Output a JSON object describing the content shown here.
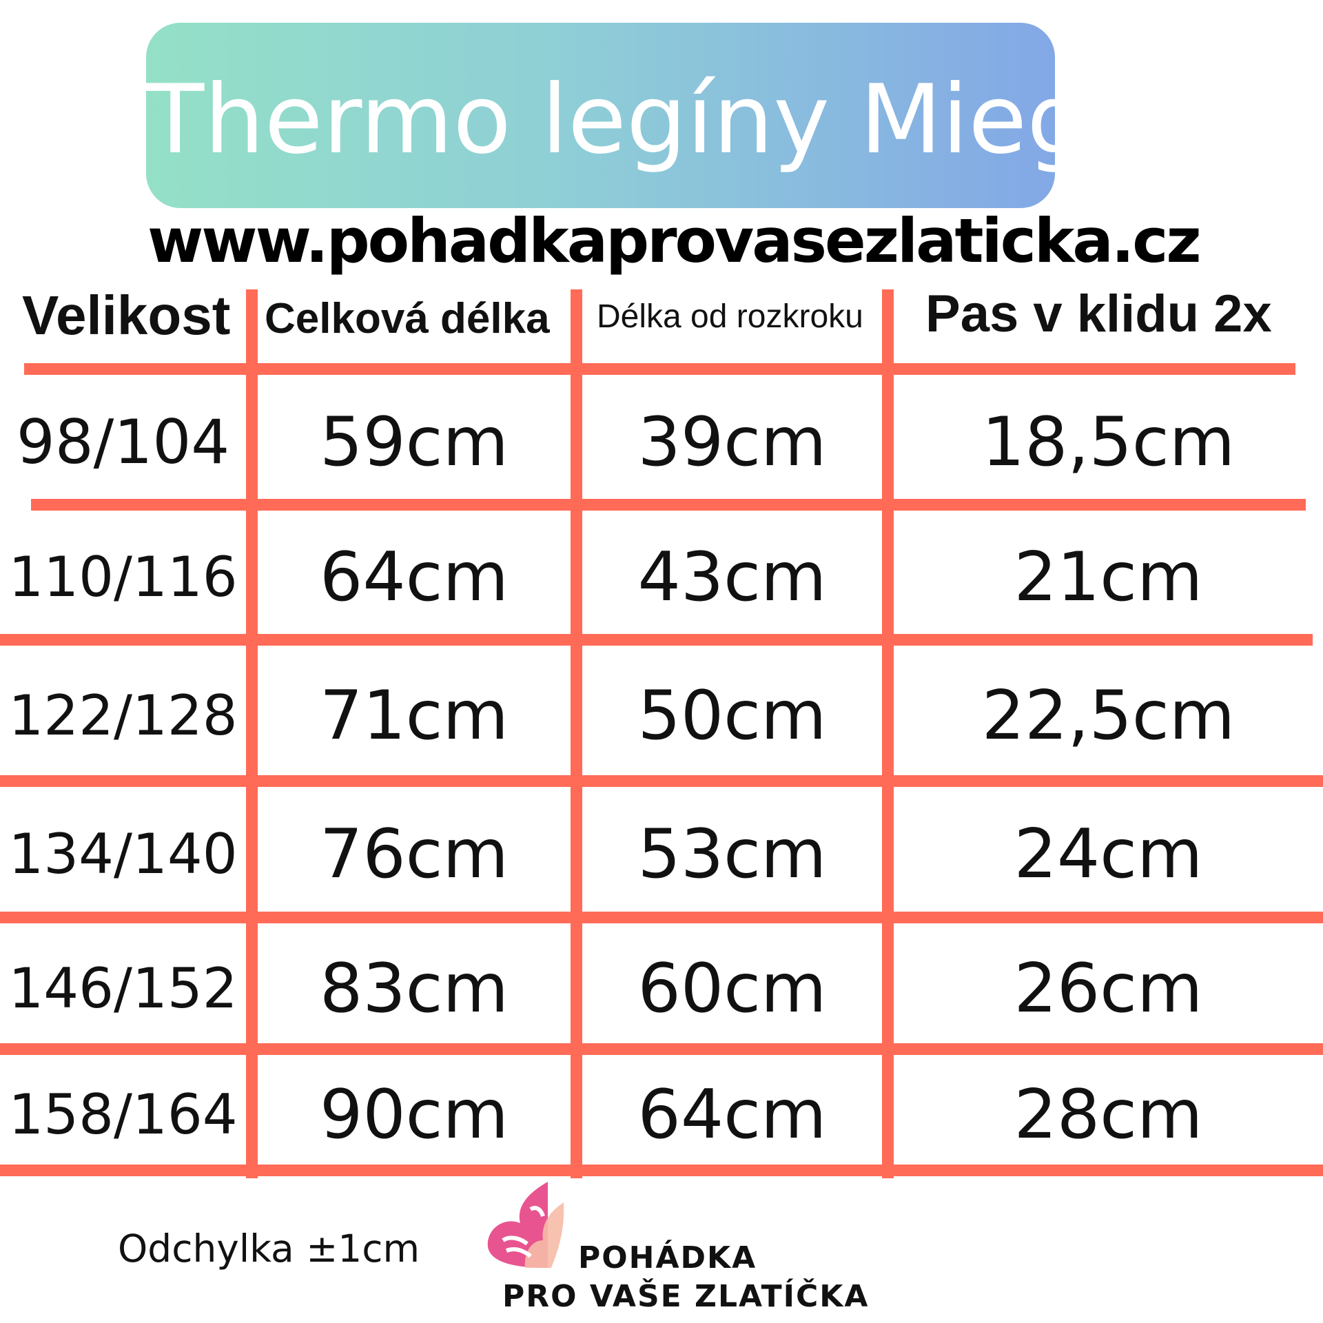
{
  "title": "Thermo legíny Miego",
  "url": "www.pohadkaprovasezlaticka.cz",
  "colors": {
    "grid": "#ff6b57",
    "gradient_start": "#94e0c7",
    "gradient_end": "#83a8e6",
    "logo_pink": "#e8548f",
    "logo_peach": "#f6bba7"
  },
  "table": {
    "headers": [
      "Velikost",
      "Celková délka",
      "Délka od rozkroku",
      "Pas v klidu 2x"
    ],
    "rows": [
      [
        "98/104",
        "59cm",
        "39cm",
        "18,5cm"
      ],
      [
        "110/116",
        "64cm",
        "43cm",
        "21cm"
      ],
      [
        "122/128",
        "71cm",
        "50cm",
        "22,5cm"
      ],
      [
        "134/140",
        "76cm",
        "53cm",
        "24cm"
      ],
      [
        "146/152",
        "83cm",
        "60cm",
        "26cm"
      ],
      [
        "158/164",
        "90cm",
        "64cm",
        "28cm"
      ]
    ]
  },
  "note": "Odchylka ±1cm",
  "logo": {
    "line1": "POHÁDKA",
    "line2": "PRO VAŠE ZLATÍČKA",
    "icon": "butterfly-icon"
  }
}
